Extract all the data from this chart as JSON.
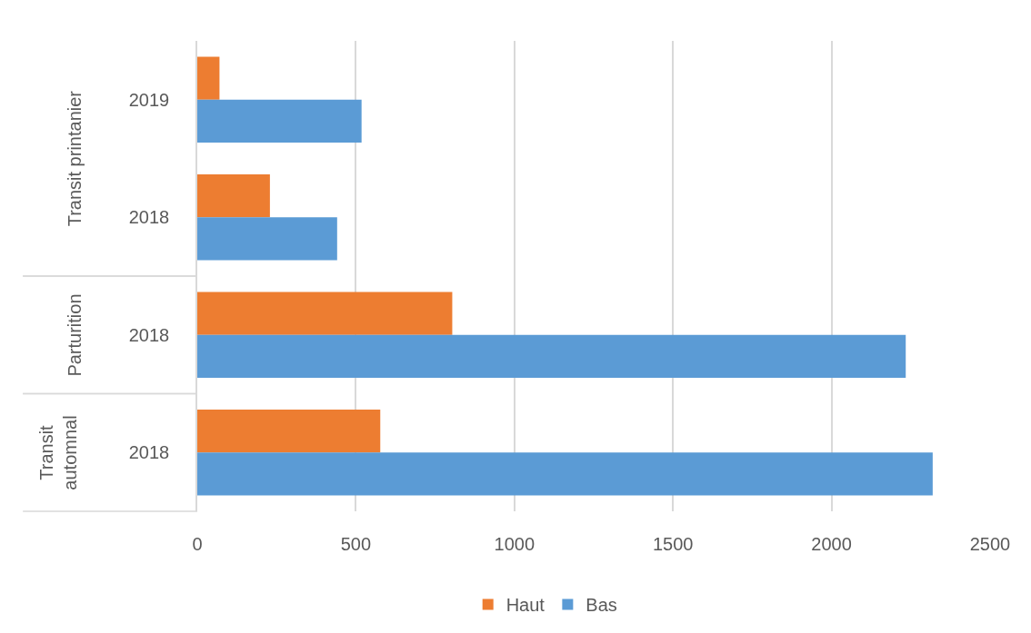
{
  "chart_data": {
    "type": "bar",
    "orientation": "horizontal",
    "categories": [
      "2019",
      "2018",
      "2018",
      "2018"
    ],
    "series": [
      {
        "name": "Haut",
        "color": "#ed7d31",
        "values": [
          70,
          229,
          804,
          577
        ]
      },
      {
        "name": "Bas",
        "color": "#5b9bd5",
        "values": [
          518,
          441,
          2234,
          2319
        ]
      }
    ],
    "annotations": [
      "Transit printanier",
      "Parturition",
      "Transit\nautomnal"
    ],
    "xlim": [
      0,
      2500
    ],
    "xticks": [
      0,
      500,
      1000,
      1500,
      2000,
      2500
    ],
    "grid": "x",
    "legend": "bottom"
  }
}
